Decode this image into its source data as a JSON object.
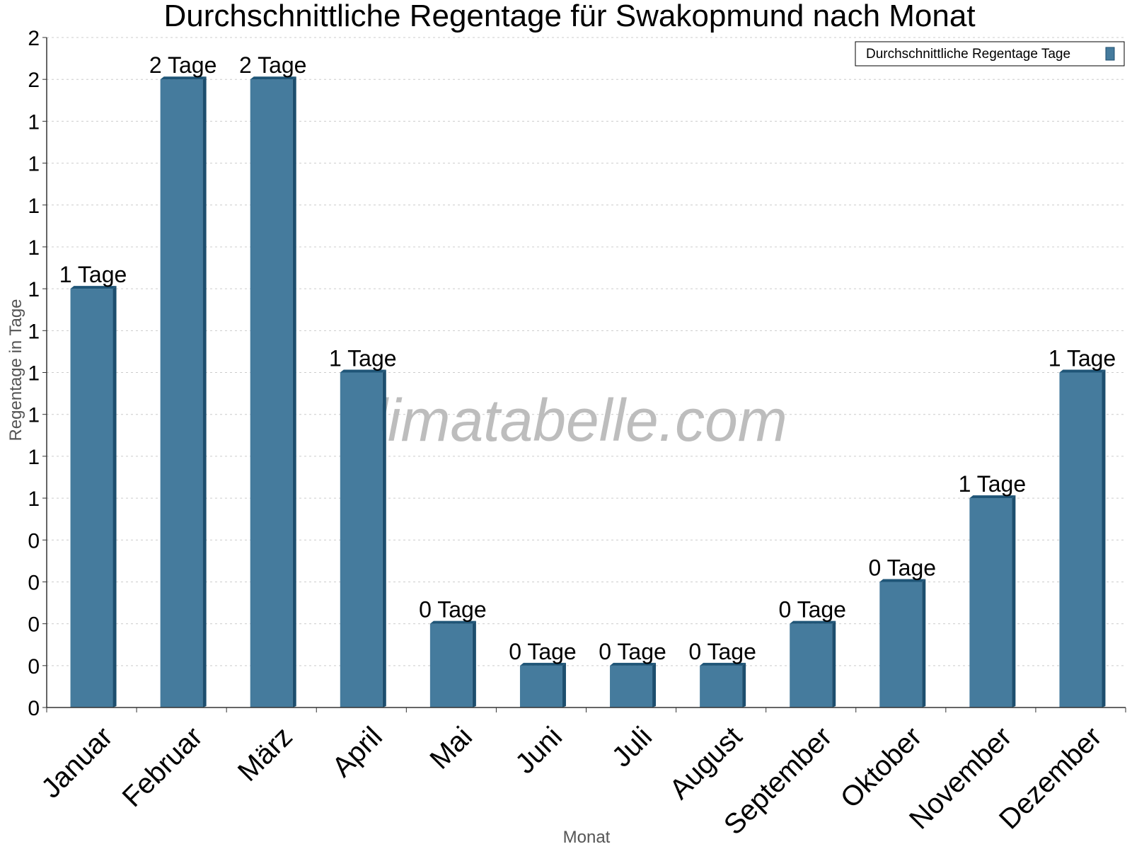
{
  "chart_data": {
    "type": "bar",
    "title": "Durchschnittliche Regentage für Swakopmund nach Monat",
    "xlabel": "Monat",
    "ylabel": "Regentage in Tage",
    "categories": [
      "Januar",
      "Februar",
      "März",
      "April",
      "Mai",
      "Juni",
      "Juli",
      "August",
      "September",
      "Oktober",
      "November",
      "Dezember"
    ],
    "series": [
      {
        "name": "Durchschnittliche Regentage Tage",
        "values": [
          1.0,
          1.5,
          1.5,
          0.8,
          0.2,
          0.1,
          0.1,
          0.1,
          0.2,
          0.3,
          0.5,
          0.8
        ],
        "labels": [
          "1 Tage",
          "2 Tage",
          "2 Tage",
          "1 Tage",
          "0 Tage",
          "0 Tage",
          "0 Tage",
          "0 Tage",
          "0 Tage",
          "0 Tage",
          "1 Tage",
          "1 Tage"
        ]
      }
    ],
    "ylim": [
      0,
      1.6
    ],
    "y_ticks": [
      0,
      0.1,
      0.2,
      0.3,
      0.4,
      0.5,
      0.6,
      0.7,
      0.8,
      0.9,
      1.0,
      1.1,
      1.2,
      1.3,
      1.4,
      1.5,
      1.6
    ],
    "y_tick_labels": [
      "0",
      "0",
      "0",
      "0",
      "0",
      "1",
      "1",
      "1",
      "1",
      "1",
      "1",
      "1",
      "1",
      "1",
      "1",
      "2",
      "2"
    ],
    "grid": true,
    "legend_position": "top-right",
    "watermark": "klimatabelle.com",
    "colors": {
      "bar": "#457b9d",
      "bar_side": "#1d4e6e",
      "bar_top": "#1f5577",
      "grid": "#cccccc",
      "axis": "#333333"
    }
  }
}
